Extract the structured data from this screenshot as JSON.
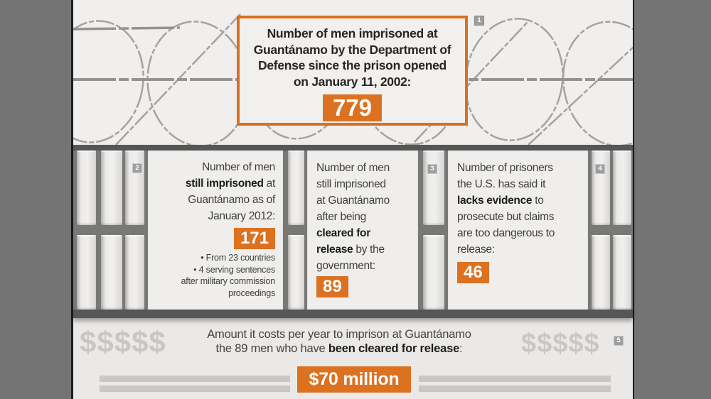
{
  "colors": {
    "accent_orange": "#dc7120",
    "band_gray": "#787877",
    "frame_dark_gray": "#565656",
    "side_margin_gray": "#757474",
    "light_background": "#f0efed",
    "card_background": "#efeeec",
    "bar_fill": "#eceae8",
    "dollar_gray": "#c9c7c5",
    "text_gray": "#3e3e3e",
    "marker_gray": "#9e9e9e"
  },
  "markers": {
    "m1": "1",
    "m2": "2",
    "m3": "3",
    "m4": "4",
    "m5": "5"
  },
  "top_box": {
    "lines": [
      "Number of men imprisoned at",
      "Guantánamo by the Department of",
      "Defense since the prison opened",
      "on January 11, 2002:"
    ],
    "value": "779"
  },
  "cards": {
    "card2": {
      "lines": [
        "Number of men",
        [
          {
            "t": "still imprisoned",
            "b": true
          },
          {
            "t": " at"
          }
        ],
        "Guantánamo as of",
        "January 2012:"
      ],
      "value": "171",
      "bullets": [
        "• From 23 countries",
        "• 4 serving sentences",
        "after military commission",
        "proceedings"
      ]
    },
    "card3": {
      "lines": [
        "Number of men",
        "still imprisoned",
        "at Guantánamo",
        "after being",
        [
          {
            "t": "cleared for",
            "b": true
          }
        ],
        [
          {
            "t": "release",
            "b": true
          },
          {
            "t": " by the"
          }
        ],
        "government:"
      ],
      "value": "89"
    },
    "card4": {
      "lines": [
        "Number of prisoners",
        "the U.S. has said it",
        [
          {
            "t": "lacks evidence",
            "b": true
          },
          {
            "t": " to"
          }
        ],
        "prosecute but claims",
        "are too dangerous to",
        "release:"
      ],
      "value": "46"
    }
  },
  "footer": {
    "lines": [
      "Amount it costs per year to imprison at Guantánamo",
      [
        {
          "t": "the 89 men who have "
        },
        {
          "t": "been cleared for release",
          "b": true
        },
        {
          "t": ":"
        }
      ]
    ],
    "dollars_left": "$$$$$",
    "dollars_right": "$$$$$",
    "value": "$70 million"
  }
}
